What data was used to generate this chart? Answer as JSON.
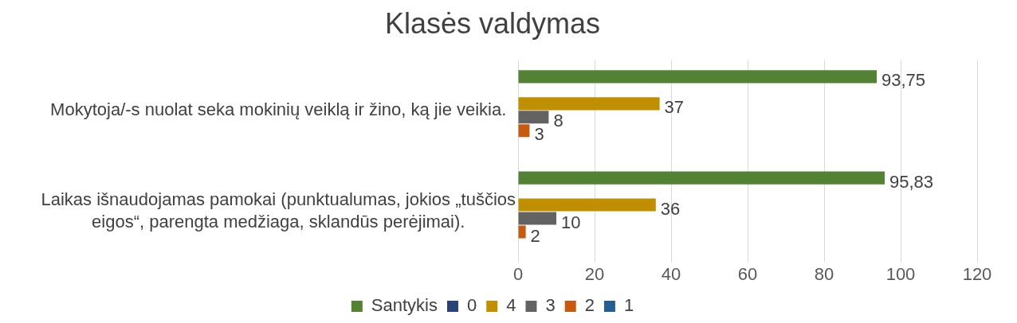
{
  "chart_data": {
    "type": "bar",
    "orientation": "horizontal",
    "title": "Klasės valdymas",
    "categories": [
      "Mokytoja/-s nuolat seka mokinių veiklą ir žino, ką jie veikia.",
      "Laikas išnaudojamas pamokai (punktualumas, jokios „tuščios eigos“, parengta medžiaga, sklandūs perėjimai)."
    ],
    "series": [
      {
        "name": "Santykis",
        "color": "#548235",
        "values": [
          93.75,
          95.83
        ],
        "value_labels": [
          "93,75",
          "95,83"
        ]
      },
      {
        "name": "0",
        "color": "#264478",
        "values": [
          null,
          null
        ]
      },
      {
        "name": "4",
        "color": "#bf8f00",
        "values": [
          37,
          36
        ],
        "value_labels": [
          "37",
          "36"
        ]
      },
      {
        "name": "3",
        "color": "#636363",
        "values": [
          8,
          10
        ],
        "value_labels": [
          "8",
          "10"
        ]
      },
      {
        "name": "2",
        "color": "#c55a11",
        "values": [
          3,
          2
        ],
        "value_labels": [
          "3",
          "2"
        ]
      },
      {
        "name": "1",
        "color": "#255e91",
        "values": [
          null,
          null
        ]
      }
    ],
    "xlim": [
      0,
      120
    ],
    "xticks": [
      0,
      20,
      40,
      60,
      80,
      100,
      120
    ],
    "grid": "x",
    "legend": "bottom"
  }
}
